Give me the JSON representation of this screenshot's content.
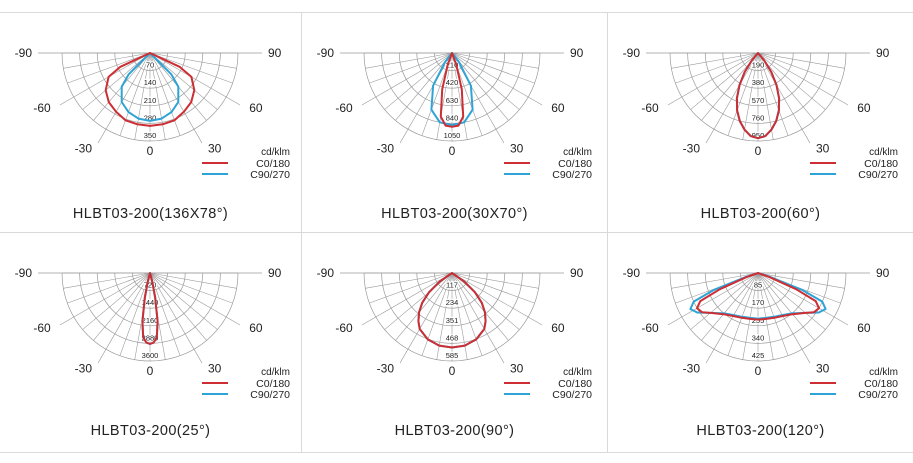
{
  "unit_label": "cd/klm",
  "legend": [
    {
      "label": "C0/180",
      "color": "#cc2e34"
    },
    {
      "label": "C90/270",
      "color": "#2ea3d6"
    }
  ],
  "angle_labels": {
    "left": "-90",
    "right": "90",
    "mid_left": "-60",
    "mid_right": "60",
    "low_left": "-30",
    "low_right": "30",
    "bottom": "0"
  },
  "chart_data": [
    {
      "type": "polar",
      "title": "HLBT03-200(136X78°)",
      "radial_ticks": [
        "70",
        "140",
        "210",
        "280",
        "350"
      ],
      "rmax": 350,
      "series": [
        {
          "name": "C0/180",
          "angles": [
            -65,
            -60,
            -50,
            -40,
            -30,
            -20,
            -10,
            0,
            10,
            20,
            30,
            40,
            50,
            60,
            65
          ],
          "values": [
            130,
            190,
            230,
            255,
            270,
            285,
            288,
            290,
            288,
            285,
            270,
            255,
            230,
            190,
            130
          ]
        },
        {
          "name": "C90/270",
          "angles": [
            -45,
            -40,
            -30,
            -20,
            -10,
            0,
            10,
            20,
            30,
            40,
            45
          ],
          "values": [
            120,
            175,
            225,
            250,
            265,
            270,
            265,
            250,
            225,
            175,
            120
          ]
        }
      ]
    },
    {
      "type": "polar",
      "title": "HLBT03-200(30X70°)",
      "radial_ticks": [
        "210",
        "420",
        "630",
        "840",
        "1050"
      ],
      "rmax": 1050,
      "series": [
        {
          "name": "C0/180",
          "angles": [
            -20,
            -15,
            -10,
            -5,
            0,
            5,
            10,
            15,
            20
          ],
          "values": [
            150,
            450,
            770,
            870,
            880,
            870,
            770,
            450,
            150
          ]
        },
        {
          "name": "C90/270",
          "angles": [
            -38,
            -30,
            -20,
            -10,
            0,
            10,
            20,
            30,
            38
          ],
          "values": [
            130,
            450,
            720,
            840,
            860,
            840,
            720,
            450,
            130
          ]
        }
      ]
    },
    {
      "type": "polar",
      "title": "HLBT03-200(60°)",
      "radial_ticks": [
        "190",
        "380",
        "570",
        "760",
        "950"
      ],
      "rmax": 950,
      "series": [
        {
          "name": "C0/180",
          "angles": [
            -40,
            -35,
            -30,
            -25,
            -20,
            -15,
            -10,
            -5,
            0,
            5,
            10,
            15,
            20,
            25,
            30,
            35,
            40
          ],
          "values": [
            100,
            250,
            400,
            540,
            660,
            760,
            840,
            900,
            920,
            900,
            840,
            760,
            660,
            540,
            400,
            250,
            100
          ]
        },
        {
          "name": "C90/270",
          "angles": [
            -40,
            -35,
            -30,
            -25,
            -20,
            -15,
            -10,
            -5,
            0,
            5,
            10,
            15,
            20,
            25,
            30,
            35,
            40
          ],
          "values": [
            100,
            250,
            400,
            540,
            660,
            760,
            840,
            900,
            920,
            900,
            840,
            760,
            660,
            540,
            400,
            250,
            100
          ]
        }
      ]
    },
    {
      "type": "polar",
      "title": "HLBT03-200(25°)",
      "radial_ticks": [
        "720",
        "1440",
        "2160",
        "2880",
        "3600"
      ],
      "rmax": 3600,
      "series": [
        {
          "name": "C0/180",
          "angles": [
            -15,
            -12,
            -9,
            -6,
            -3,
            0,
            3,
            6,
            9,
            12,
            15
          ],
          "values": [
            300,
            1000,
            2000,
            2650,
            2850,
            2900,
            2850,
            2650,
            2000,
            1000,
            300
          ]
        },
        {
          "name": "C90/270",
          "angles": [
            -15,
            -12,
            -9,
            -6,
            -3,
            0,
            3,
            6,
            9,
            12,
            15
          ],
          "values": [
            300,
            1000,
            2000,
            2650,
            2850,
            2900,
            2850,
            2650,
            2000,
            1000,
            300
          ]
        }
      ]
    },
    {
      "type": "polar",
      "title": "HLBT03-200(90°)",
      "radial_ticks": [
        "117",
        "234",
        "351",
        "468",
        "585"
      ],
      "rmax": 585,
      "series": [
        {
          "name": "C0/180",
          "angles": [
            -55,
            -50,
            -45,
            -40,
            -35,
            -30,
            -20,
            -10,
            0,
            10,
            20,
            30,
            35,
            40,
            45,
            50,
            55
          ],
          "values": [
            100,
            200,
            280,
            340,
            390,
            430,
            470,
            490,
            495,
            490,
            470,
            430,
            390,
            340,
            280,
            200,
            100
          ]
        },
        {
          "name": "C90/270",
          "angles": [
            -55,
            -50,
            -45,
            -40,
            -35,
            -30,
            -20,
            -10,
            0,
            10,
            20,
            30,
            35,
            40,
            45,
            50,
            55
          ],
          "values": [
            100,
            200,
            280,
            340,
            390,
            430,
            470,
            490,
            495,
            490,
            470,
            430,
            390,
            340,
            280,
            200,
            100
          ]
        }
      ]
    },
    {
      "type": "polar",
      "title": "HLBT03-200(120°)",
      "radial_ticks": [
        "85",
        "170",
        "255",
        "340",
        "425"
      ],
      "rmax": 425,
      "series": [
        {
          "name": "C0/180",
          "angles": [
            -70,
            -67,
            -64,
            -60,
            -55,
            -50,
            -40,
            -30,
            -20,
            -10,
            0,
            10,
            20,
            30,
            40,
            50,
            55,
            60,
            64,
            67,
            70
          ],
          "values": [
            60,
            200,
            310,
            340,
            330,
            300,
            260,
            240,
            230,
            225,
            225,
            225,
            230,
            240,
            260,
            300,
            330,
            340,
            310,
            200,
            60
          ]
        },
        {
          "name": "C90/270",
          "angles": [
            -72,
            -69,
            -66,
            -62,
            -57,
            -50,
            -40,
            -30,
            -20,
            -10,
            0,
            10,
            20,
            30,
            40,
            50,
            57,
            62,
            66,
            69,
            72
          ],
          "values": [
            60,
            230,
            340,
            370,
            350,
            300,
            255,
            235,
            225,
            220,
            220,
            220,
            225,
            235,
            255,
            300,
            350,
            370,
            340,
            230,
            60
          ]
        }
      ]
    }
  ]
}
